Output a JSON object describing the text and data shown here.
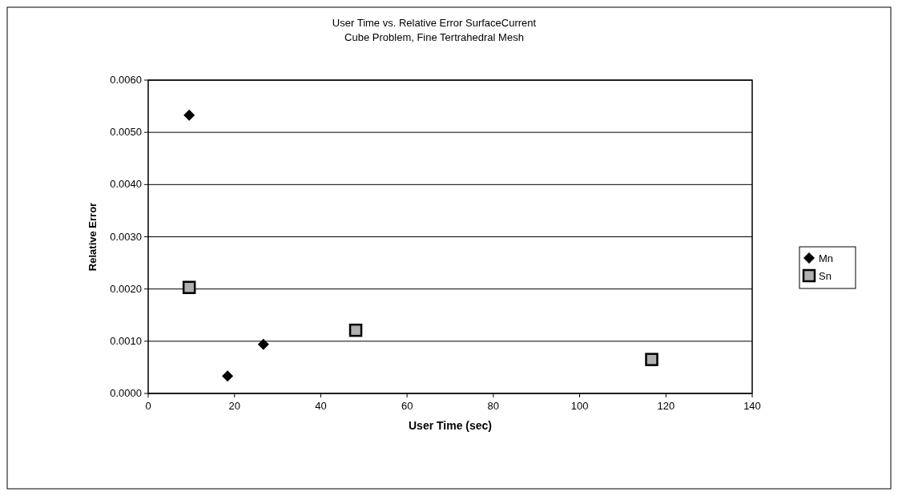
{
  "chart_data": {
    "type": "scatter",
    "title": "User Time vs. Relative Error SurfaceCurrent",
    "subtitle": "Cube Problem, Fine Tertrahedral Mesh",
    "xlabel": "User Time (sec)",
    "ylabel": "Relative Error",
    "series": [
      {
        "name": "Mn",
        "color": "#000000",
        "marker": "diamond",
        "x": [
          9.5,
          18.4,
          26.7
        ],
        "values": [
          0.00533,
          0.000335,
          0.00094
        ]
      },
      {
        "name": "Sn",
        "color": "#b0b0b0",
        "marker": "square",
        "x": [
          9.5,
          48.1,
          116.7
        ],
        "values": [
          0.00203,
          0.00121,
          0.00065
        ]
      }
    ],
    "xlim": [
      0,
      140
    ],
    "xticks": [
      0,
      20,
      40,
      60,
      80,
      100,
      120,
      140
    ],
    "ylim": [
      0,
      0.006
    ],
    "yticks": [
      {
        "value": 0,
        "label": "0.0000"
      },
      {
        "value": 0.001,
        "label": "0.0010"
      },
      {
        "value": 0.002,
        "label": "0.0020"
      },
      {
        "value": 0.003,
        "label": "0.0030"
      },
      {
        "value": 0.004,
        "label": "0.0040"
      },
      {
        "value": 0.005,
        "label": "0.0050"
      },
      {
        "value": 0.006,
        "label": "0.0060"
      }
    ],
    "grid": "y",
    "legend": "right"
  }
}
